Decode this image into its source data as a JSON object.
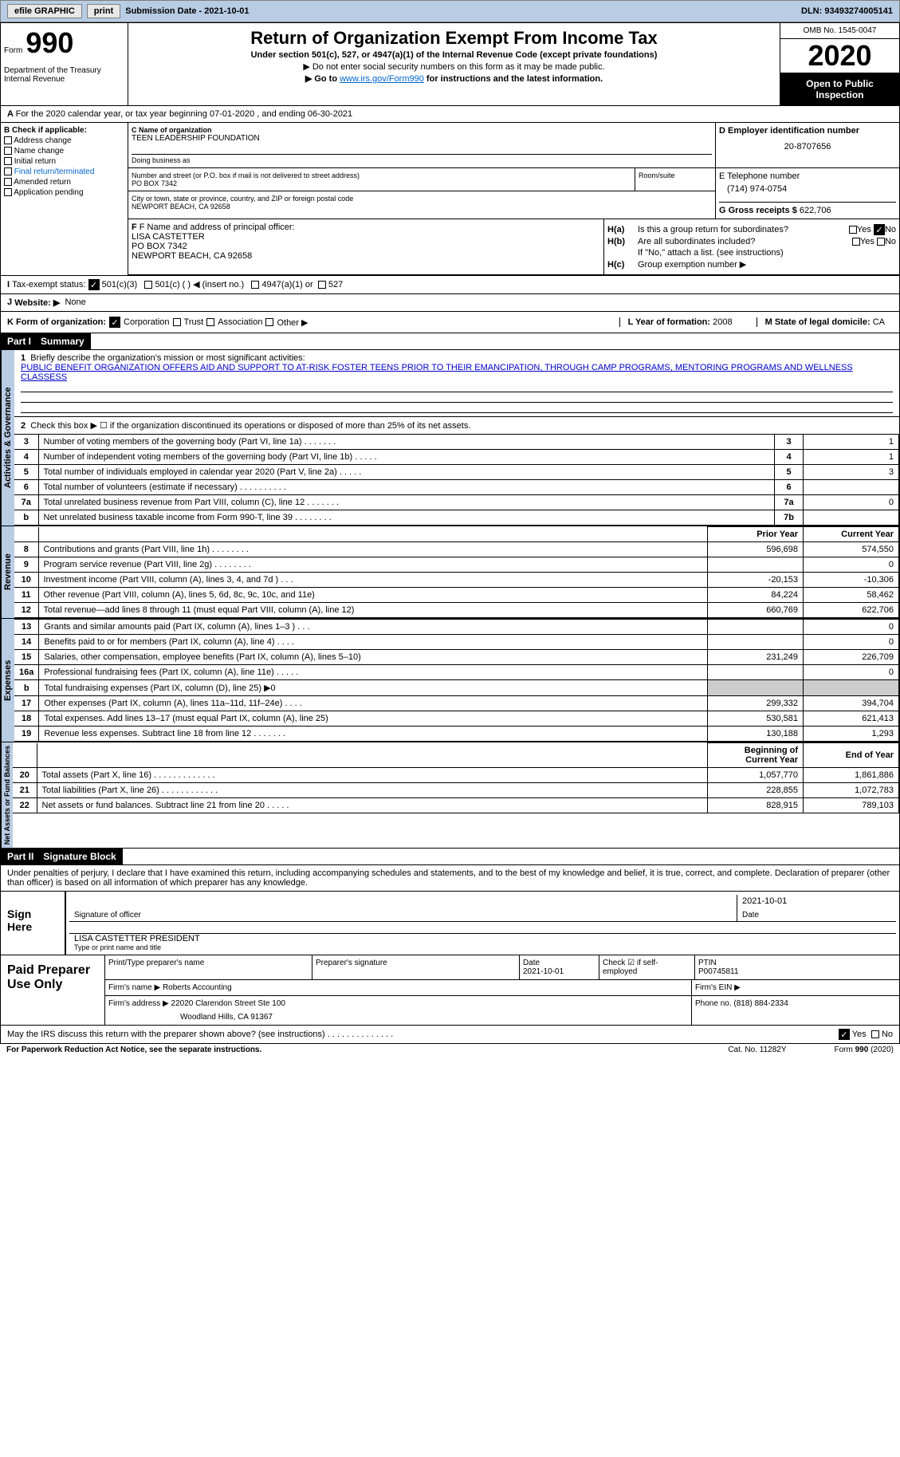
{
  "topbar": {
    "efile": "efile GRAPHIC",
    "print": "print",
    "submission": "Submission Date - 2021-10-01",
    "dln": "DLN: 93493274005141"
  },
  "header": {
    "form_label": "Form",
    "form_num": "990",
    "dept": "Department of the Treasury\nInternal Revenue",
    "title": "Return of Organization Exempt From Income Tax",
    "sub1": "Under section 501(c), 527, or 4947(a)(1) of the Internal Revenue Code (except private foundations)",
    "sub2": "▶ Do not enter social security numbers on this form as it may be made public.",
    "sub3_pre": "▶ Go to ",
    "sub3_link": "www.irs.gov/Form990",
    "sub3_post": " for instructions and the latest information.",
    "omb": "OMB No. 1545-0047",
    "year": "2020",
    "open": "Open to Public Inspection"
  },
  "row_a": "For the 2020 calendar year, or tax year beginning 07-01-2020   , and ending 06-30-2021",
  "b": {
    "label": "B Check if applicable:",
    "items": [
      "Address change",
      "Name change",
      "Initial return",
      "Final return/terminated",
      "Amended return",
      "Application pending"
    ]
  },
  "c": {
    "label": "C Name of organization",
    "name": "TEEN LEADERSHIP FOUNDATION",
    "dba_label": "Doing business as",
    "street_label": "Number and street (or P.O. box if mail is not delivered to street address)",
    "street": "PO BOX 7342",
    "room_label": "Room/suite",
    "city_label": "City or town, state or province, country, and ZIP or foreign postal code",
    "city": "NEWPORT BEACH, CA  92658"
  },
  "d": {
    "label": "D Employer identification number",
    "val": "20-8707656"
  },
  "e": {
    "label": "E Telephone number",
    "val": "(714) 974-0754"
  },
  "g": {
    "label": "G Gross receipts $",
    "val": "622,706"
  },
  "f": {
    "label": "F Name and address of principal officer:",
    "name": "LISA CASTETTER",
    "addr1": "PO BOX 7342",
    "addr2": "NEWPORT BEACH, CA  92658"
  },
  "h": {
    "a_label": "Is this a group return for subordinates?",
    "b_label": "Are all subordinates included?",
    "note": "If \"No,\" attach a list. (see instructions)",
    "c_label": "Group exemption number ▶"
  },
  "i": {
    "label": "Tax-exempt status:",
    "opt1": "501(c)(3)",
    "opt2": "501(c) (  ) ◀ (insert no.)",
    "opt3": "4947(a)(1) or",
    "opt4": "527"
  },
  "j": {
    "label": "Website: ▶",
    "val": "None"
  },
  "k": {
    "label": "K Form of organization:",
    "opts": [
      "Corporation",
      "Trust",
      "Association",
      "Other ▶"
    ]
  },
  "l": {
    "label": "L Year of formation:",
    "val": "2008"
  },
  "m": {
    "label": "M State of legal domicile:",
    "val": "CA"
  },
  "part1": {
    "hdr": "Part I",
    "title": "Summary",
    "q1_label": "Briefly describe the organization's mission or most significant activities:",
    "q1_mission": "PUBLIC BENEFIT ORGANIZATION OFFERS AID AND SUPPORT TO AT-RISK FOSTER TEENS PRIOR TO THEIR EMANCIPATION, THROUGH CAMP PROGRAMS, MENTORING PROGRAMS AND WELLNESS CLASSESS",
    "q2": "Check this box ▶ ☐ if the organization discontinued its operations or disposed of more than 25% of its net assets.",
    "gov_rows": [
      {
        "n": "3",
        "desc": "Number of voting members of the governing body (Part VI, line 1a)  .    .    .    .    .    .    .",
        "mid": "3",
        "val": "1"
      },
      {
        "n": "4",
        "desc": "Number of independent voting members of the governing body (Part VI, line 1b)   .    .    .    .    .",
        "mid": "4",
        "val": "1"
      },
      {
        "n": "5",
        "desc": "Total number of individuals employed in calendar year 2020 (Part V, line 2a)   .    .    .    .    .",
        "mid": "5",
        "val": "3"
      },
      {
        "n": "6",
        "desc": "Total number of volunteers (estimate if necessary)    .     .    .    .    .    .    .    .    .    .",
        "mid": "6",
        "val": ""
      },
      {
        "n": "7a",
        "desc": "Total unrelated business revenue from Part VIII, column (C), line 12   .    .    .    .    .    .    .",
        "mid": "7a",
        "val": "0"
      },
      {
        "n": "b",
        "desc": "Net unrelated business taxable income from Form 990-T, line 39   .    .    .    .    .    .    .    .",
        "mid": "7b",
        "val": ""
      }
    ],
    "col_prior": "Prior Year",
    "col_curr": "Current Year",
    "rev_rows": [
      {
        "n": "8",
        "desc": "Contributions and grants (Part VIII, line 1h)   .    .    .    .    .    .    .    .",
        "p": "596,698",
        "c": "574,550"
      },
      {
        "n": "9",
        "desc": "Program service revenue (Part VIII, line 2g)   .    .    .    .    .    .    .    .",
        "p": "",
        "c": "0"
      },
      {
        "n": "10",
        "desc": "Investment income (Part VIII, column (A), lines 3, 4, and 7d )   .    .    .",
        "p": "-20,153",
        "c": "-10,306"
      },
      {
        "n": "11",
        "desc": "Other revenue (Part VIII, column (A), lines 5, 6d, 8c, 9c, 10c, and 11e)",
        "p": "84,224",
        "c": "58,462"
      },
      {
        "n": "12",
        "desc": "Total revenue—add lines 8 through 11 (must equal Part VIII, column (A), line 12)",
        "p": "660,769",
        "c": "622,706"
      }
    ],
    "exp_rows": [
      {
        "n": "13",
        "desc": "Grants and similar amounts paid (Part IX, column (A), lines 1–3 )  .    .    .",
        "p": "",
        "c": "0"
      },
      {
        "n": "14",
        "desc": "Benefits paid to or for members (Part IX, column (A), line 4)   .    .    .    .",
        "p": "",
        "c": "0"
      },
      {
        "n": "15",
        "desc": "Salaries, other compensation, employee benefits (Part IX, column (A), lines 5–10)",
        "p": "231,249",
        "c": "226,709"
      },
      {
        "n": "16a",
        "desc": "Professional fundraising fees (Part IX, column (A), line 11e)   .    .    .    .    .",
        "p": "",
        "c": "0"
      },
      {
        "n": "b",
        "desc": "Total fundraising expenses (Part IX, column (D), line 25) ▶0",
        "p": "GRAY",
        "c": "GRAY"
      },
      {
        "n": "17",
        "desc": "Other expenses (Part IX, column (A), lines 11a–11d, 11f–24e)   .    .    .    .",
        "p": "299,332",
        "c": "394,704"
      },
      {
        "n": "18",
        "desc": "Total expenses. Add lines 13–17 (must equal Part IX, column (A), line 25)",
        "p": "530,581",
        "c": "621,413"
      },
      {
        "n": "19",
        "desc": "Revenue less expenses. Subtract line 18 from line 12   .    .    .    .    .    .    .",
        "p": "130,188",
        "c": "1,293"
      }
    ],
    "col_beg": "Beginning of Current Year",
    "col_end": "End of Year",
    "na_rows": [
      {
        "n": "20",
        "desc": "Total assets (Part X, line 16)  .    .    .    .    .    .    .    .    .    .    .    .    .",
        "p": "1,057,770",
        "c": "1,861,886"
      },
      {
        "n": "21",
        "desc": "Total liabilities (Part X, line 26)  .    .    .    .    .    .    .    .    .    .    .    .",
        "p": "228,855",
        "c": "1,072,783"
      },
      {
        "n": "22",
        "desc": "Net assets or fund balances. Subtract line 21 from line 20   .    .    .    .    .",
        "p": "828,915",
        "c": "789,103"
      }
    ],
    "vert_gov": "Activities & Governance",
    "vert_rev": "Revenue",
    "vert_exp": "Expenses",
    "vert_na": "Net Assets or Fund Balances"
  },
  "part2": {
    "hdr": "Part II",
    "title": "Signature Block",
    "intro": "Under penalties of perjury, I declare that I have examined this return, including accompanying schedules and statements, and to the best of my knowledge and belief, it is true, correct, and complete. Declaration of preparer (other than officer) is based on all information of which preparer has any knowledge."
  },
  "sign": {
    "label": "Sign Here",
    "sig_lbl": "Signature of officer",
    "date_lbl": "Date",
    "date_val": "2021-10-01",
    "name": "LISA CASTETTER  PRESIDENT",
    "name_lbl": "Type or print name and title"
  },
  "prep": {
    "label": "Paid Preparer Use Only",
    "r1": {
      "c1": "Print/Type preparer's name",
      "c2": "Preparer's signature",
      "c3": "Date",
      "c3v": "2021-10-01",
      "c4": "Check ☑ if self-employed",
      "c5": "PTIN",
      "c5v": "P00745811"
    },
    "r2": {
      "c1": "Firm's name   ▶",
      "c1v": "Roberts Accounting",
      "c2": "Firm's EIN ▶"
    },
    "r3": {
      "c1": "Firm's address ▶",
      "c1v": "22020 Clarendon Street Ste 100",
      "c1v2": "Woodland Hills, CA  91367",
      "c2": "Phone no. (818) 884-2334"
    }
  },
  "footer": {
    "q": "May the IRS discuss this return with the preparer shown above? (see instructions)   .    .    .    .    .    .    .    .    .    .    .    .    .    .",
    "yes": "Yes",
    "no": "No",
    "pra": "For Paperwork Reduction Act Notice, see the separate instructions.",
    "cat": "Cat. No. 11282Y",
    "form": "Form 990 (2020)"
  }
}
